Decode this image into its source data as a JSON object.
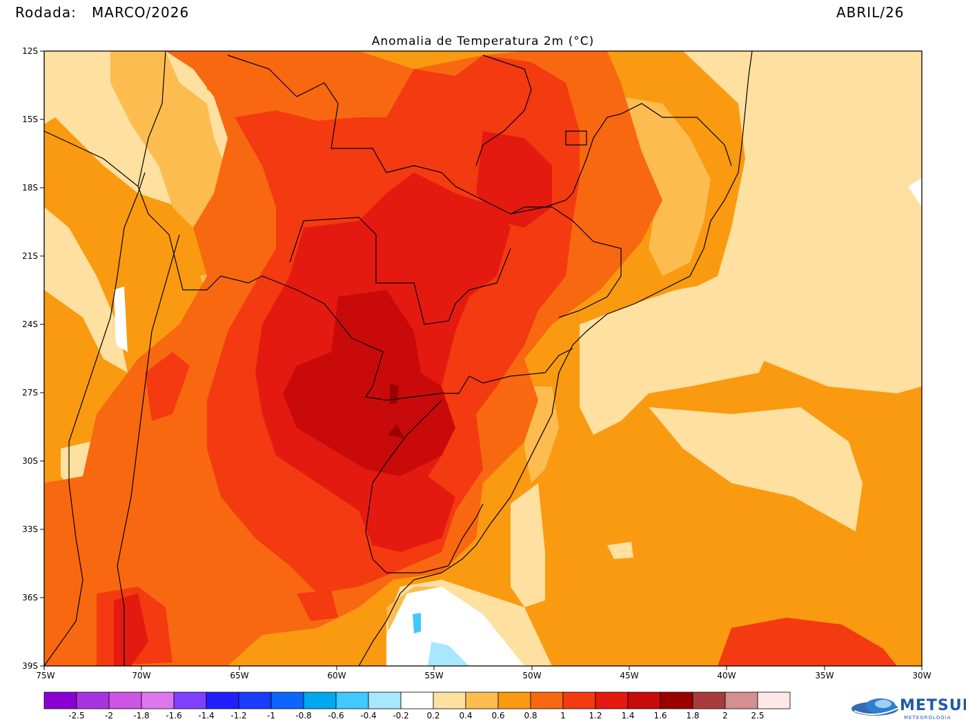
{
  "header": {
    "run_label": "Rodada:",
    "run_value": "MARCO/2026",
    "target": "ABRIL/26"
  },
  "map": {
    "title": "Anomalia de Temperatura 2m (°C)",
    "lat_labels": [
      "12S",
      "15S",
      "18S",
      "21S",
      "24S",
      "27S",
      "30S",
      "33S",
      "36S",
      "39S"
    ],
    "lon_labels": [
      "75W",
      "70W",
      "65W",
      "60W",
      "55W",
      "50W",
      "45W",
      "40W",
      "35W",
      "30W"
    ]
  },
  "colorbar": {
    "colors": [
      "#8a00d4",
      "#aa33e0",
      "#cc55e6",
      "#dd77ee",
      "#8040ff",
      "#2020ff",
      "#1a3cff",
      "#0a66ff",
      "#00a8f0",
      "#40c8ff",
      "#a8e8ff",
      "#ffffff",
      "#fee0a0",
      "#fcbc50",
      "#fa9a10",
      "#f86810",
      "#f43a10",
      "#e41a10",
      "#c80a0a",
      "#9a0000",
      "#a83c3c",
      "#d49090",
      "#fde8e8"
    ],
    "labels": [
      "-2.5",
      "-2",
      "-1.8",
      "-1.6",
      "-1.4",
      "-1.2",
      "-1",
      "-0.8",
      "-0.6",
      "-0.4",
      "-0.2",
      "0.2",
      "0.4",
      "0.6",
      "0.8",
      "1",
      "1.2",
      "1.4",
      "1.6",
      "1.8",
      "2",
      "2.5"
    ]
  },
  "logo": {
    "name": "METSUL",
    "sub": "METEOROLOGIA"
  }
}
